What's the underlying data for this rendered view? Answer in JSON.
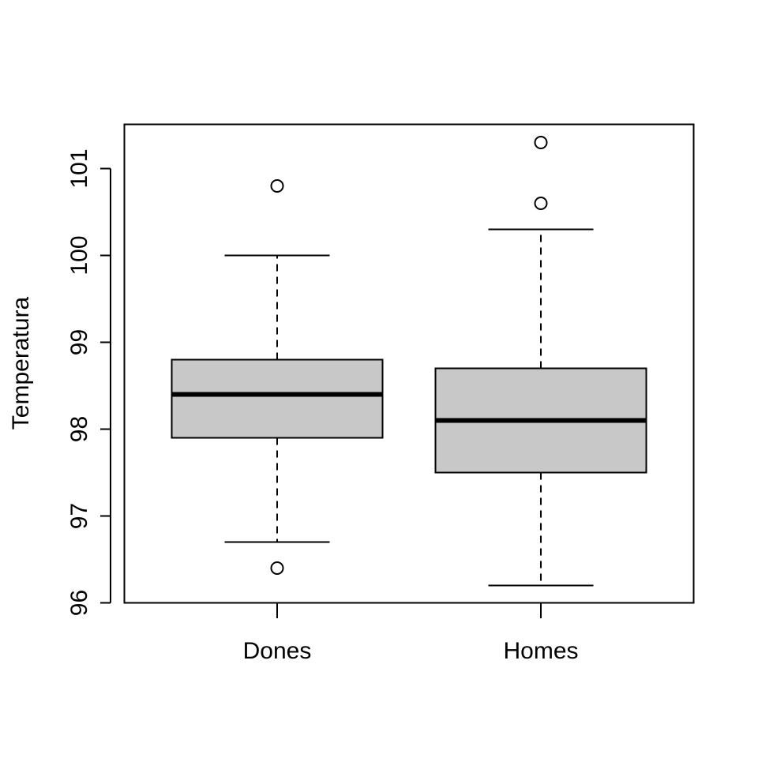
{
  "chart_data": {
    "type": "boxplot",
    "title": "",
    "xlabel": "",
    "ylabel": "Temperatura",
    "ylim": [
      96,
      101.5
    ],
    "yticks": [
      96,
      97,
      98,
      99,
      100,
      101
    ],
    "categories": [
      "Dones",
      "Homes"
    ],
    "boxes": [
      {
        "category": "Dones",
        "whisker_low": 96.7,
        "q1": 97.9,
        "median": 98.4,
        "q3": 98.8,
        "whisker_high": 100.0,
        "outliers": [
          96.4,
          100.8
        ]
      },
      {
        "category": "Homes",
        "whisker_low": 96.2,
        "q1": 97.5,
        "median": 98.1,
        "q3": 98.7,
        "whisker_high": 100.3,
        "outliers": [
          100.6,
          101.3
        ]
      }
    ],
    "box_fill": "#c8c8c8",
    "stroke": "#000000",
    "grid": false,
    "legend": "none"
  }
}
